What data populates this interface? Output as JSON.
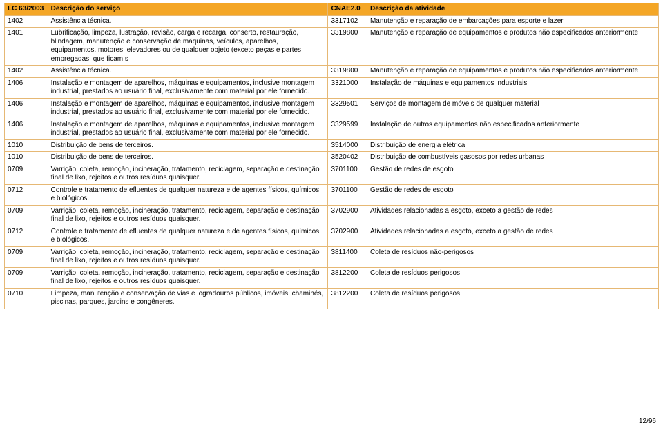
{
  "columns": {
    "c1": "LC 63/2003",
    "c2": "Descrição do serviço",
    "c3": "CNAE2.0",
    "c4": "Descrição da atividade"
  },
  "footer": "12/96",
  "rows": [
    {
      "lc": "1402",
      "servico": "Assistência técnica.",
      "cnae": "3317102",
      "atividade": "Manutenção e reparação de embarcações para esporte e lazer"
    },
    {
      "lc": "1401",
      "servico": "Lubrificação, limpeza, lustração, revisão, carga e recarga, conserto, restauração, blindagem, manutenção e conservação de máquinas, veículos, aparelhos, equipamentos, motores, elevadores ou de qualquer objeto (exceto peças e partes empregadas, que ficam s",
      "cnae": "3319800",
      "atividade": "Manutenção e reparação de equipamentos e produtos não especificados anteriormente"
    },
    {
      "lc": "1402",
      "servico": "Assistência técnica.",
      "cnae": "3319800",
      "atividade": "Manutenção e reparação de equipamentos e produtos não especificados anteriormente"
    },
    {
      "lc": "1406",
      "servico": "Instalação e montagem de aparelhos, máquinas e equipamentos, inclusive montagem industrial, prestados ao usuário final, exclusivamente com material por ele fornecido.",
      "cnae": "3321000",
      "atividade": "Instalação de máquinas e equipamentos industriais"
    },
    {
      "lc": "1406",
      "servico": "Instalação e montagem de aparelhos, máquinas e equipamentos, inclusive montagem industrial, prestados ao usuário final, exclusivamente com material por ele fornecido.",
      "cnae": "3329501",
      "atividade": "Serviços de montagem de móveis de qualquer material"
    },
    {
      "lc": "1406",
      "servico": "Instalação e montagem de aparelhos, máquinas e equipamentos, inclusive montagem industrial, prestados ao usuário final, exclusivamente com material por ele fornecido.",
      "cnae": "3329599",
      "atividade": "Instalação de outros equipamentos não especificados anteriormente"
    },
    {
      "lc": "1010",
      "servico": "Distribuição de bens de terceiros.",
      "cnae": "3514000",
      "atividade": "Distribuição de energia elétrica"
    },
    {
      "lc": "1010",
      "servico": "Distribuição de bens de terceiros.",
      "cnae": "3520402",
      "atividade": "Distribuição de combustíveis gasosos por redes urbanas"
    },
    {
      "lc": "0709",
      "servico": "Varrição, coleta, remoção, incineração, tratamento, reciclagem, separação e destinação final de lixo, rejeitos e outros resíduos quaisquer.",
      "cnae": "3701100",
      "atividade": "Gestão de redes de esgoto"
    },
    {
      "lc": "0712",
      "servico": "Controle e tratamento de efluentes de qualquer natureza e de agentes físicos, químicos e biológicos.",
      "cnae": "3701100",
      "atividade": "Gestão de redes de esgoto"
    },
    {
      "lc": "0709",
      "servico": "Varrição, coleta, remoção, incineração, tratamento, reciclagem, separação e destinação final de lixo, rejeitos e outros resíduos quaisquer.",
      "cnae": "3702900",
      "atividade": "Atividades relacionadas a esgoto, exceto a gestão de redes"
    },
    {
      "lc": "0712",
      "servico": "Controle e tratamento de efluentes de qualquer natureza e de agentes físicos, químicos e biológicos.",
      "cnae": "3702900",
      "atividade": "Atividades relacionadas a esgoto, exceto a gestão de redes"
    },
    {
      "lc": "0709",
      "servico": "Varrição, coleta, remoção, incineração, tratamento, reciclagem, separação e destinação final de lixo, rejeitos e outros resíduos quaisquer.",
      "cnae": "3811400",
      "atividade": "Coleta de resíduos não-perigosos"
    },
    {
      "lc": "0709",
      "servico": "Varrição, coleta, remoção, incineração, tratamento, reciclagem, separação e destinação final de lixo, rejeitos e outros resíduos quaisquer.",
      "cnae": "3812200",
      "atividade": "Coleta de resíduos perigosos"
    },
    {
      "lc": "0710",
      "servico": "Limpeza, manutenção e conservação de vias e logradouros públicos, imóveis, chaminés, piscinas, parques, jardins e congêneres.",
      "cnae": "3812200",
      "atividade": "Coleta de resíduos perigosos"
    }
  ]
}
